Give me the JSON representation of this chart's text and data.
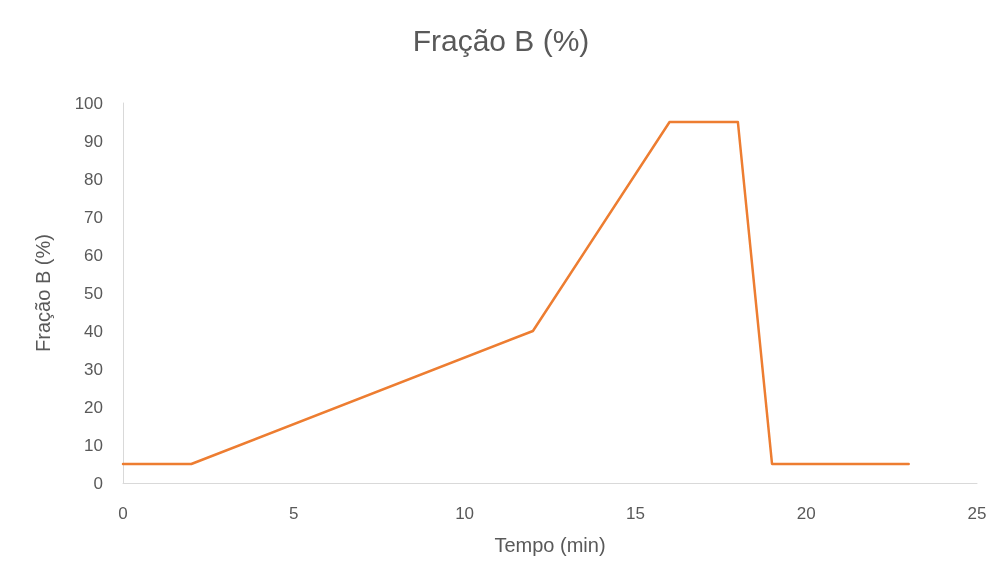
{
  "chart_data": {
    "type": "line",
    "title": "Fração B (%)",
    "xlabel": "Tempo (min)",
    "ylabel": "Fração B (%)",
    "x": [
      0,
      2,
      12,
      16,
      18,
      19,
      23
    ],
    "series": [
      {
        "color": "#ed7d31",
        "values": [
          5,
          5,
          40,
          95,
          95,
          5,
          5
        ]
      }
    ],
    "xlim": [
      0,
      25
    ],
    "xticks": [
      0,
      5,
      10,
      15,
      20,
      25
    ],
    "ylim": [
      0,
      100
    ],
    "yticks": [
      0,
      10,
      20,
      30,
      40,
      50,
      60,
      70,
      80,
      90,
      100
    ],
    "grid": false,
    "marker": "none",
    "line_style": "solid"
  }
}
